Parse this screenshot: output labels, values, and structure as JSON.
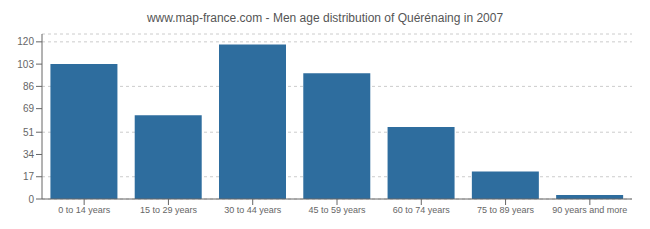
{
  "chart_data": {
    "type": "bar",
    "title": "www.map-france.com - Men age distribution of Quérénaing in 2007",
    "categories": [
      "0 to 14 years",
      "15 to 29 years",
      "30 to 44 years",
      "45 to 59 years",
      "60 to 74 years",
      "75 to 89 years",
      "90 years and more"
    ],
    "values": [
      103,
      64,
      118,
      96,
      55,
      21,
      3
    ],
    "color": "#2e6d9e",
    "ylim": [
      0,
      126
    ],
    "yticks": [
      0,
      17,
      34,
      51,
      69,
      86,
      103,
      120
    ],
    "grid": true
  }
}
